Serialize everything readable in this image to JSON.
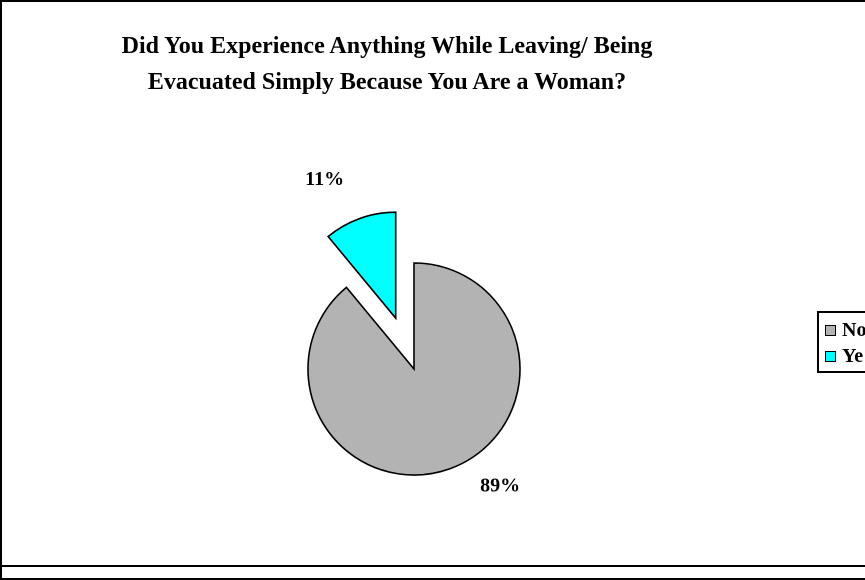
{
  "chart_data": {
    "type": "pie",
    "title_lines": [
      "Did You Experience Anything While Leaving/ Being",
      "Evacuated Simply Because You Are a Woman?"
    ],
    "slices": [
      {
        "name": "No",
        "value": 89,
        "label": "89%",
        "color": "#b3b3b3",
        "exploded": false
      },
      {
        "name": "Yes",
        "value": 11,
        "label": "11%",
        "color": "#00ffff",
        "exploded": true
      }
    ],
    "legend": {
      "position": "right",
      "visible_labels": [
        "No",
        "Ye"
      ]
    }
  }
}
